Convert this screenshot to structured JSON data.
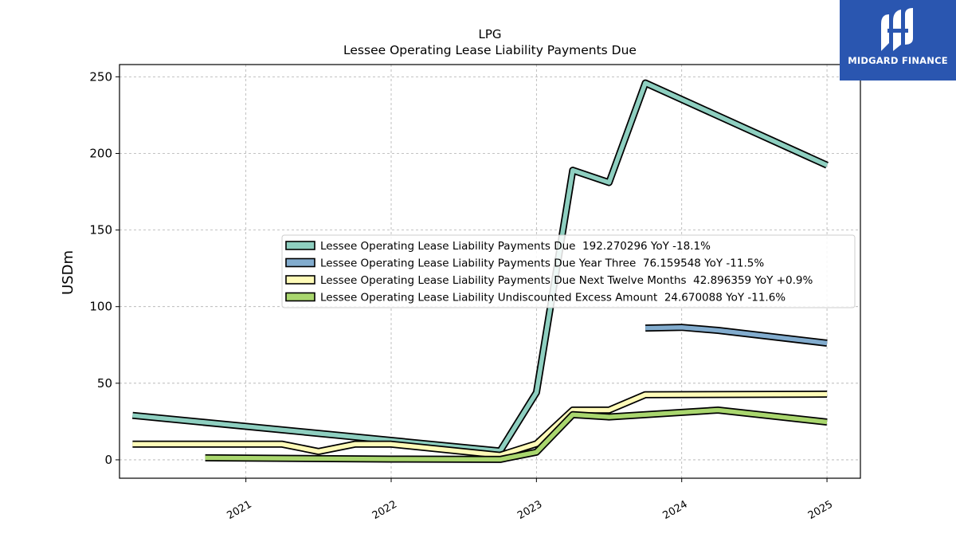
{
  "chart_data": {
    "type": "line",
    "title": "LPG",
    "subtitle": "Lessee Operating Lease Liability Payments Due",
    "ylabel": "USDm",
    "xlabel": "",
    "ylim": [
      -12,
      258
    ],
    "xlim": [
      2020.13,
      2025.23
    ],
    "yticks": [
      0,
      50,
      100,
      150,
      200,
      250
    ],
    "xticks": [
      2021,
      2022,
      2023,
      2024,
      2025
    ],
    "grid": true,
    "legend_position": "center-right",
    "series": [
      {
        "name": "Lessee Operating Lease Liability Payments Due  192.270296 YoY -18.1%",
        "color": "#8ecfc0",
        "points": [
          [
            2020.22,
            29.0
          ],
          [
            2022.75,
            5.8
          ],
          [
            2023.0,
            44.0
          ],
          [
            2023.25,
            189.0
          ],
          [
            2023.5,
            181.0
          ],
          [
            2023.75,
            246.0
          ],
          [
            2025.0,
            192.3
          ]
        ]
      },
      {
        "name": "Lessee Operating Lease Liability Payments Due Year Three  76.159548 YoY -11.5%",
        "color": "#82acce",
        "points": [
          [
            2023.75,
            86.0
          ],
          [
            2024.0,
            86.5
          ],
          [
            2024.25,
            84.5
          ],
          [
            2025.0,
            76.2
          ]
        ]
      },
      {
        "name": "Lessee Operating Lease Liability Payments Due Next Twelve Months  42.896359 YoY +0.9%",
        "color": "#fffbb8",
        "points": [
          [
            2020.22,
            10.2
          ],
          [
            2021.25,
            10.2
          ],
          [
            2021.5,
            5.5
          ],
          [
            2021.75,
            10.2
          ],
          [
            2022.0,
            10.2
          ],
          [
            2022.75,
            3.0
          ],
          [
            2023.0,
            10.5
          ],
          [
            2023.25,
            32.5
          ],
          [
            2023.5,
            32.5
          ],
          [
            2023.75,
            42.5
          ],
          [
            2025.0,
            42.9
          ]
        ]
      },
      {
        "name": "Lessee Operating Lease Liability Undiscounted Excess Amount  24.670088 YoY -11.6%",
        "color": "#a9d66e",
        "points": [
          [
            2020.72,
            1.3
          ],
          [
            2021.5,
            0.8
          ],
          [
            2022.0,
            0.5
          ],
          [
            2022.75,
            0.3
          ],
          [
            2023.0,
            5.0
          ],
          [
            2023.25,
            29.5
          ],
          [
            2023.5,
            28.0
          ],
          [
            2024.25,
            32.5
          ],
          [
            2025.0,
            24.7
          ]
        ]
      }
    ]
  },
  "logo": {
    "text": "MIDGARD FINANCE",
    "icon": "midgard-m-logo-icon",
    "color": "#2a56b0"
  }
}
